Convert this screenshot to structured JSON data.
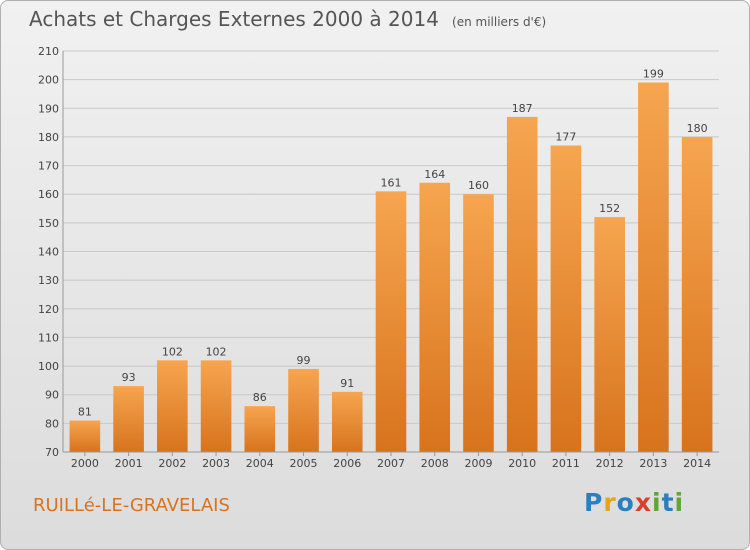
{
  "title": "Achats et Charges Externes 2000 à 2014",
  "unit_note": "(en milliers d'€)",
  "commune": "RUILLé-LE-GRAVELAIS",
  "logo": {
    "letters": [
      "P",
      "r",
      "o",
      "x",
      "i",
      "t",
      "i"
    ],
    "colors": [
      "#2a7fc0",
      "#e8a21e",
      "#2a7fc0",
      "#d9402b",
      "#5da835",
      "#2a7fc0",
      "#5da835"
    ]
  },
  "colors": {
    "bar_top": "#f6a550",
    "bar_bottom": "#d8731d",
    "grid": "#c8c8c8"
  },
  "chart_data": {
    "type": "bar",
    "title": "Achats et Charges Externes 2000 à 2014",
    "xlabel": "",
    "ylabel": "",
    "categories": [
      "2000",
      "2001",
      "2002",
      "2003",
      "2004",
      "2005",
      "2006",
      "2007",
      "2008",
      "2009",
      "2010",
      "2011",
      "2012",
      "2013",
      "2014"
    ],
    "values": [
      81,
      93,
      102,
      102,
      86,
      99,
      91,
      161,
      164,
      160,
      187,
      177,
      152,
      199,
      180
    ],
    "ylim": [
      70,
      210
    ],
    "yticks": [
      70,
      80,
      90,
      100,
      110,
      120,
      130,
      140,
      150,
      160,
      170,
      180,
      190,
      200,
      210
    ],
    "grid": true
  }
}
